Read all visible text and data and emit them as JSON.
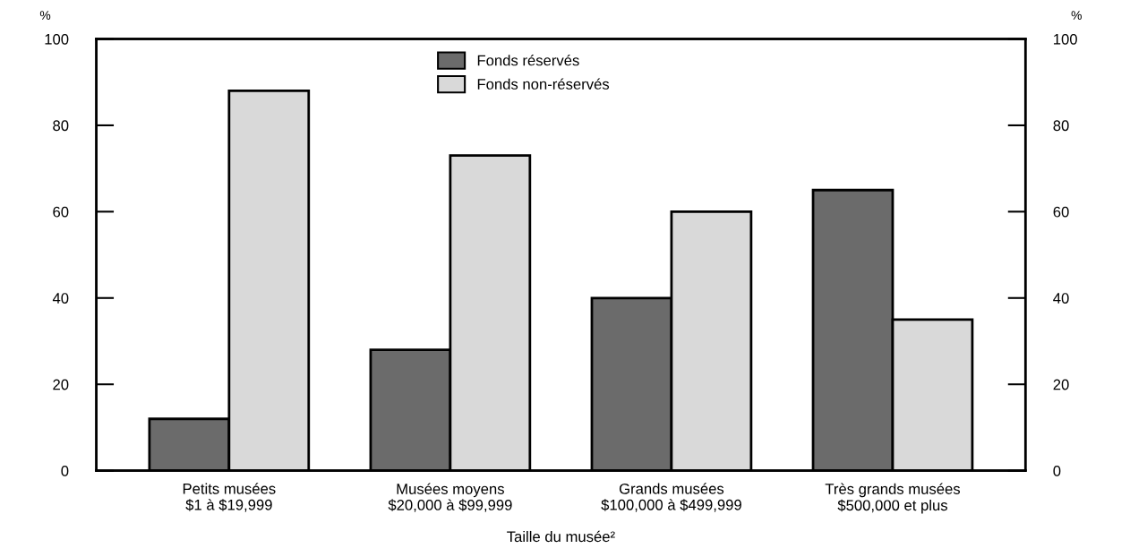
{
  "chart_data": {
    "type": "bar",
    "categories": [
      "Petits musées\n$1 à $19,999",
      "Musées moyens\n$20,000 à $99,999",
      "Grands musées\n$100,000 à $499,999",
      "Très grands musées\n$500,000 et plus"
    ],
    "series": [
      {
        "name": "Fonds réservés",
        "color": "#6b6b6b",
        "values": [
          12,
          28,
          40,
          65
        ]
      },
      {
        "name": "Fonds non-réservés",
        "color": "#d9d9d9",
        "values": [
          88,
          73,
          60,
          35
        ]
      }
    ],
    "xlabel": "Taille du musée²",
    "ylabel": "%",
    "y2label": "%",
    "ylim": [
      0,
      100
    ],
    "yticks": [
      0,
      20,
      40,
      60,
      80,
      100
    ],
    "y2lim": [
      0,
      100
    ],
    "y2ticks": [
      0,
      20,
      40,
      60,
      80,
      100
    ],
    "legend": "top",
    "grid": false
  }
}
